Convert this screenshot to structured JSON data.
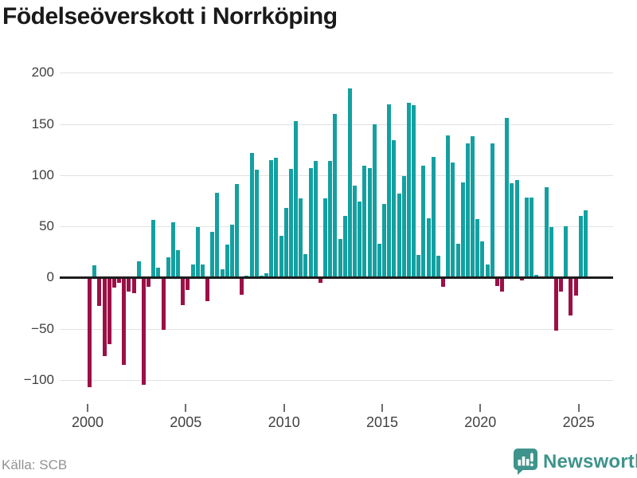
{
  "title": "Födelseöverskott i Norrköping",
  "source": "Källa: SCB",
  "branding": {
    "logo_text": "Newsworthy",
    "logo_icon": "newsworthy-speech-bubble-bar-chart-icon",
    "logo_color": "#3e948c"
  },
  "colors": {
    "positive_bar": "#14a0a0",
    "negative_bar": "#9b1047",
    "gridline": "#e2e2e2",
    "zero_line": "#1d1d1d",
    "title_text": "#1a1a1a",
    "axis_text": "#424242",
    "source_text": "#929292"
  },
  "chart_data": {
    "type": "bar",
    "title": "Födelseöverskott i Norrköping",
    "frequency": "quarterly",
    "start": "2000 Q1",
    "end": "2025 Q2",
    "grid": true,
    "legend": false,
    "ylim": [
      -125,
      210
    ],
    "yticks": [
      200,
      150,
      100,
      50,
      0,
      -50,
      -100
    ],
    "ytick_labels": [
      "200",
      "150",
      "100",
      "50",
      "0",
      "−50",
      "−100"
    ],
    "xticks": [
      2000,
      2005,
      2010,
      2015,
      2020,
      2025
    ],
    "xtick_labels": [
      "2000",
      "2005",
      "2010",
      "2015",
      "2020",
      "2025"
    ],
    "series": [
      {
        "name": "Födelseöverskott",
        "values": [
          -107,
          12,
          -28,
          -77,
          -65,
          -10,
          -5,
          -85,
          -14,
          -15,
          16,
          -105,
          -9,
          56,
          10,
          -51,
          20,
          54,
          27,
          -27,
          -12,
          13,
          49,
          13,
          -23,
          45,
          83,
          8,
          32,
          52,
          91,
          -17,
          2,
          122,
          105,
          2,
          4,
          115,
          117,
          41,
          68,
          106,
          153,
          77,
          23,
          107,
          114,
          -5,
          77,
          114,
          160,
          38,
          60,
          185,
          90,
          74,
          109,
          107,
          150,
          33,
          72,
          169,
          134,
          82,
          99,
          171,
          168,
          22,
          109,
          58,
          118,
          21,
          -9,
          139,
          112,
          33,
          93,
          131,
          138,
          57,
          35,
          13,
          131,
          -8,
          -14,
          156,
          92,
          95,
          -3,
          78,
          78,
          3,
          1,
          88,
          49,
          -52,
          -14,
          50,
          -37,
          -18,
          60,
          66
        ]
      }
    ]
  }
}
